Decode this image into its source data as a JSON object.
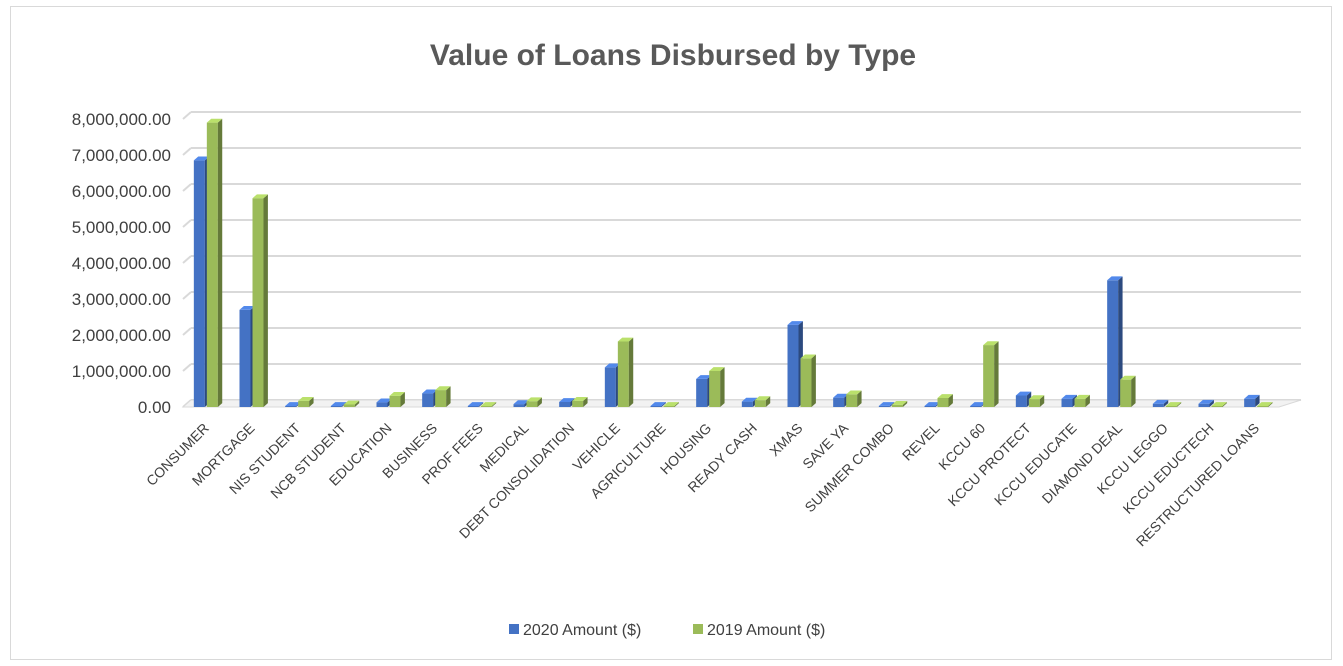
{
  "chart_data": {
    "type": "bar",
    "title": "Value of Loans Disbursed by Type",
    "xlabel": "",
    "ylabel": "",
    "ylim": [
      0,
      8000000
    ],
    "yticks": [
      "0.00",
      "1,000,000.00",
      "2,000,000.00",
      "3,000,000.00",
      "4,000,000.00",
      "5,000,000.00",
      "6,000,000.00",
      "7,000,000.00",
      "8,000,000.00"
    ],
    "grid": true,
    "legend_position": "bottom",
    "categories": [
      "CONSUMER",
      "MORTGAGE",
      "NIS STUDENT",
      "NCB STUDENT",
      "EDUCATION",
      "BUSINESS",
      "PROF FEES",
      "MEDICAL",
      "DEBT CONSOLIDATION",
      "VEHICLE",
      "AGRICULTURE",
      "HOUSING",
      "READY CASH",
      "XMAS",
      "SAVE YA",
      "SUMMER COMBO",
      "REVEL",
      "KCCU 60",
      "KCCU PROTECT",
      "KCCU EDUCATE",
      "DIAMOND DEAL",
      "KCCU LEGGO",
      "KCCU EDUCTECH",
      "RESTRUCTURED LOANS"
    ],
    "series": [
      {
        "name": "2020 Amount ($)",
        "color": "#4472c4",
        "values": [
          6850000,
          2700000,
          20000,
          10000,
          130000,
          380000,
          10000,
          80000,
          140000,
          1100000,
          10000,
          780000,
          150000,
          2280000,
          260000,
          30000,
          20000,
          10000,
          320000,
          230000,
          3520000,
          90000,
          90000,
          230000
        ]
      },
      {
        "name": "2019 Amount ($)",
        "color": "#9bbb59",
        "values": [
          7900000,
          5800000,
          170000,
          70000,
          310000,
          470000,
          10000,
          160000,
          170000,
          1820000,
          10000,
          1000000,
          190000,
          1350000,
          350000,
          60000,
          250000,
          1720000,
          220000,
          230000,
          760000,
          10000,
          10000,
          10000
        ]
      }
    ]
  }
}
